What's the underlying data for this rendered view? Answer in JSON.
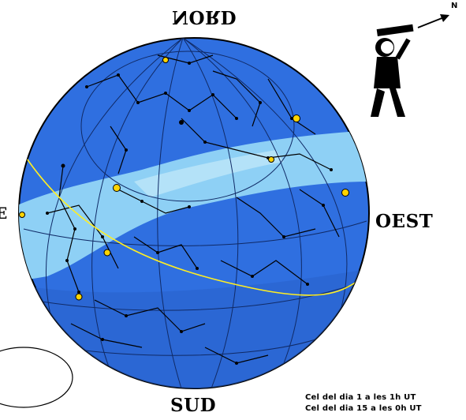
{
  "directions": {
    "north": "NORD",
    "west": "OEST",
    "south": "SUD",
    "east": "E",
    "pointer": "N"
  },
  "captions": [
    "Cel del dia   1 a les 1h UT",
    "Cel del dia 15 a les 0h UT"
  ],
  "colors": {
    "sky": "#2f6fe0",
    "milky_way": "#8ed0f5",
    "ecliptic": "#ffee22",
    "stars": "#000000",
    "planets": "#ffd400"
  },
  "icons": [
    "observer-icon",
    "direction-arrow-icon"
  ]
}
